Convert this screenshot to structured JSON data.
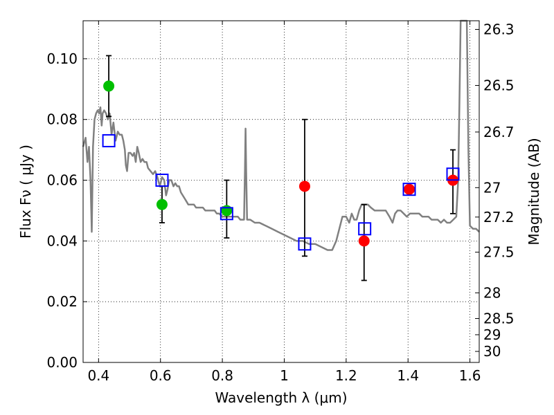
{
  "chart_data": {
    "type": "scatter",
    "xlabel": "Wavelength  λ (μm)",
    "ylabel": "Flux  Fν  ( μJy )",
    "y2label": "Magnitude (AB)",
    "xlim": [
      0.35,
      1.63
    ],
    "ylim": [
      0.0,
      0.1125
    ],
    "grid": true,
    "grid_style": "dotted",
    "x_ticks": [
      {
        "value": 0.4,
        "label": "0.4"
      },
      {
        "value": 0.6,
        "label": "0.6"
      },
      {
        "value": 0.8,
        "label": "0.8"
      },
      {
        "value": 1.0,
        "label": "1"
      },
      {
        "value": 1.2,
        "label": "1.2"
      },
      {
        "value": 1.4,
        "label": "1.4"
      },
      {
        "value": 1.6,
        "label": "1.6"
      }
    ],
    "y_ticks": [
      {
        "value": 0.0,
        "label": "0.00"
      },
      {
        "value": 0.02,
        "label": "0.02"
      },
      {
        "value": 0.04,
        "label": "0.04"
      },
      {
        "value": 0.06,
        "label": "0.06"
      },
      {
        "value": 0.08,
        "label": "0.08"
      },
      {
        "value": 0.1,
        "label": "0.10"
      }
    ],
    "y2_ticks": [
      {
        "mag": 26.3,
        "label": "26.3"
      },
      {
        "mag": 26.5,
        "label": "26.5"
      },
      {
        "mag": 26.7,
        "label": "26.7"
      },
      {
        "mag": 27.0,
        "label": "27"
      },
      {
        "mag": 27.2,
        "label": "27.2"
      },
      {
        "mag": 27.5,
        "label": "27.5"
      },
      {
        "mag": 28.0,
        "label": "28"
      },
      {
        "mag": 28.5,
        "label": "28.5"
      },
      {
        "mag": 29.0,
        "label": "29"
      },
      {
        "mag": 30.0,
        "label": "30"
      }
    ],
    "series": [
      {
        "kind": "line",
        "color": "#808080",
        "points": [
          [
            0.35,
            0.071
          ],
          [
            0.358,
            0.074
          ],
          [
            0.364,
            0.066
          ],
          [
            0.369,
            0.071
          ],
          [
            0.374,
            0.06
          ],
          [
            0.378,
            0.043
          ],
          [
            0.382,
            0.071
          ],
          [
            0.387,
            0.08
          ],
          [
            0.392,
            0.082
          ],
          [
            0.397,
            0.083
          ],
          [
            0.402,
            0.082
          ],
          [
            0.406,
            0.084
          ],
          [
            0.41,
            0.078
          ],
          [
            0.413,
            0.082
          ],
          [
            0.418,
            0.083
          ],
          [
            0.424,
            0.082
          ],
          [
            0.43,
            0.08
          ],
          [
            0.436,
            0.082
          ],
          [
            0.442,
            0.075
          ],
          [
            0.448,
            0.079
          ],
          [
            0.455,
            0.073
          ],
          [
            0.462,
            0.076
          ],
          [
            0.468,
            0.075
          ],
          [
            0.475,
            0.075
          ],
          [
            0.48,
            0.073
          ],
          [
            0.485,
            0.07
          ],
          [
            0.488,
            0.065
          ],
          [
            0.492,
            0.063
          ],
          [
            0.497,
            0.069
          ],
          [
            0.503,
            0.069
          ],
          [
            0.51,
            0.068
          ],
          [
            0.515,
            0.069
          ],
          [
            0.52,
            0.066
          ],
          [
            0.525,
            0.071
          ],
          [
            0.53,
            0.069
          ],
          [
            0.536,
            0.066
          ],
          [
            0.542,
            0.067
          ],
          [
            0.548,
            0.066
          ],
          [
            0.555,
            0.066
          ],
          [
            0.56,
            0.064
          ],
          [
            0.568,
            0.063
          ],
          [
            0.576,
            0.062
          ],
          [
            0.583,
            0.063
          ],
          [
            0.59,
            0.061
          ],
          [
            0.598,
            0.058
          ],
          [
            0.605,
            0.061
          ],
          [
            0.612,
            0.06
          ],
          [
            0.618,
            0.055
          ],
          [
            0.623,
            0.057
          ],
          [
            0.628,
            0.06
          ],
          [
            0.635,
            0.06
          ],
          [
            0.642,
            0.058
          ],
          [
            0.648,
            0.059
          ],
          [
            0.654,
            0.058
          ],
          [
            0.66,
            0.058
          ],
          [
            0.666,
            0.056
          ],
          [
            0.672,
            0.055
          ],
          [
            0.678,
            0.054
          ],
          [
            0.684,
            0.053
          ],
          [
            0.69,
            0.052
          ],
          [
            0.696,
            0.052
          ],
          [
            0.702,
            0.052
          ],
          [
            0.708,
            0.052
          ],
          [
            0.715,
            0.051
          ],
          [
            0.722,
            0.051
          ],
          [
            0.73,
            0.051
          ],
          [
            0.737,
            0.051
          ],
          [
            0.745,
            0.05
          ],
          [
            0.752,
            0.05
          ],
          [
            0.76,
            0.05
          ],
          [
            0.767,
            0.05
          ],
          [
            0.775,
            0.05
          ],
          [
            0.782,
            0.049
          ],
          [
            0.79,
            0.049
          ],
          [
            0.8,
            0.048
          ],
          [
            0.81,
            0.048
          ],
          [
            0.82,
            0.048
          ],
          [
            0.83,
            0.048
          ],
          [
            0.84,
            0.048
          ],
          [
            0.85,
            0.048
          ],
          [
            0.858,
            0.047
          ],
          [
            0.865,
            0.047
          ],
          [
            0.87,
            0.047
          ],
          [
            0.873,
            0.063
          ],
          [
            0.875,
            0.077
          ],
          [
            0.877,
            0.063
          ],
          [
            0.88,
            0.047
          ],
          [
            0.89,
            0.047
          ],
          [
            0.905,
            0.046
          ],
          [
            0.92,
            0.046
          ],
          [
            0.94,
            0.045
          ],
          [
            0.96,
            0.044
          ],
          [
            0.98,
            0.043
          ],
          [
            1.0,
            0.042
          ],
          [
            1.02,
            0.041
          ],
          [
            1.04,
            0.04
          ],
          [
            1.06,
            0.04
          ],
          [
            1.08,
            0.039
          ],
          [
            1.1,
            0.039
          ],
          [
            1.12,
            0.038
          ],
          [
            1.14,
            0.037
          ],
          [
            1.155,
            0.037
          ],
          [
            1.168,
            0.04
          ],
          [
            1.178,
            0.044
          ],
          [
            1.188,
            0.048
          ],
          [
            1.2,
            0.048
          ],
          [
            1.21,
            0.046
          ],
          [
            1.218,
            0.049
          ],
          [
            1.226,
            0.047
          ],
          [
            1.234,
            0.047
          ],
          [
            1.242,
            0.05
          ],
          [
            1.25,
            0.052
          ],
          [
            1.26,
            0.052
          ],
          [
            1.27,
            0.052
          ],
          [
            1.28,
            0.051
          ],
          [
            1.292,
            0.05
          ],
          [
            1.304,
            0.05
          ],
          [
            1.316,
            0.05
          ],
          [
            1.328,
            0.05
          ],
          [
            1.34,
            0.048
          ],
          [
            1.35,
            0.046
          ],
          [
            1.358,
            0.049
          ],
          [
            1.366,
            0.05
          ],
          [
            1.376,
            0.05
          ],
          [
            1.386,
            0.049
          ],
          [
            1.396,
            0.048
          ],
          [
            1.406,
            0.049
          ],
          [
            1.416,
            0.049
          ],
          [
            1.426,
            0.049
          ],
          [
            1.436,
            0.049
          ],
          [
            1.446,
            0.048
          ],
          [
            1.456,
            0.048
          ],
          [
            1.466,
            0.048
          ],
          [
            1.476,
            0.047
          ],
          [
            1.486,
            0.047
          ],
          [
            1.496,
            0.047
          ],
          [
            1.506,
            0.046
          ],
          [
            1.516,
            0.047
          ],
          [
            1.526,
            0.046
          ],
          [
            1.536,
            0.046
          ],
          [
            1.546,
            0.047
          ],
          [
            1.556,
            0.048
          ],
          [
            1.562,
            0.06
          ],
          [
            1.566,
            0.085
          ],
          [
            1.57,
            0.1125
          ],
          [
            1.59,
            0.1125
          ],
          [
            1.595,
            0.07
          ],
          [
            1.6,
            0.045
          ],
          [
            1.61,
            0.044
          ],
          [
            1.62,
            0.044
          ],
          [
            1.63,
            0.043
          ]
        ]
      },
      {
        "kind": "points",
        "color": "#00bf00",
        "points": [
          {
            "x": 0.433,
            "y": 0.091,
            "ylo": 0.081,
            "yhi": 0.101
          },
          {
            "x": 0.605,
            "y": 0.052,
            "ylo": 0.046,
            "yhi": 0.058
          },
          {
            "x": 0.814,
            "y": 0.05,
            "ylo": 0.041,
            "yhi": 0.06
          }
        ]
      },
      {
        "kind": "points",
        "color": "#ff0000",
        "points": [
          {
            "x": 1.066,
            "y": 0.058,
            "ylo": 0.035,
            "yhi": 0.08
          },
          {
            "x": 1.258,
            "y": 0.04,
            "ylo": 0.027,
            "yhi": 0.052
          },
          {
            "x": 1.404,
            "y": 0.057
          },
          {
            "x": 1.545,
            "y": 0.06,
            "ylo": 0.049,
            "yhi": 0.07
          }
        ]
      },
      {
        "kind": "squares",
        "color": "#0000ff",
        "points": [
          {
            "x": 0.433,
            "y": 0.073
          },
          {
            "x": 0.605,
            "y": 0.06
          },
          {
            "x": 0.814,
            "y": 0.049
          },
          {
            "x": 1.066,
            "y": 0.039
          },
          {
            "x": 1.26,
            "y": 0.044
          },
          {
            "x": 1.404,
            "y": 0.057
          },
          {
            "x": 1.545,
            "y": 0.062
          }
        ]
      }
    ]
  }
}
